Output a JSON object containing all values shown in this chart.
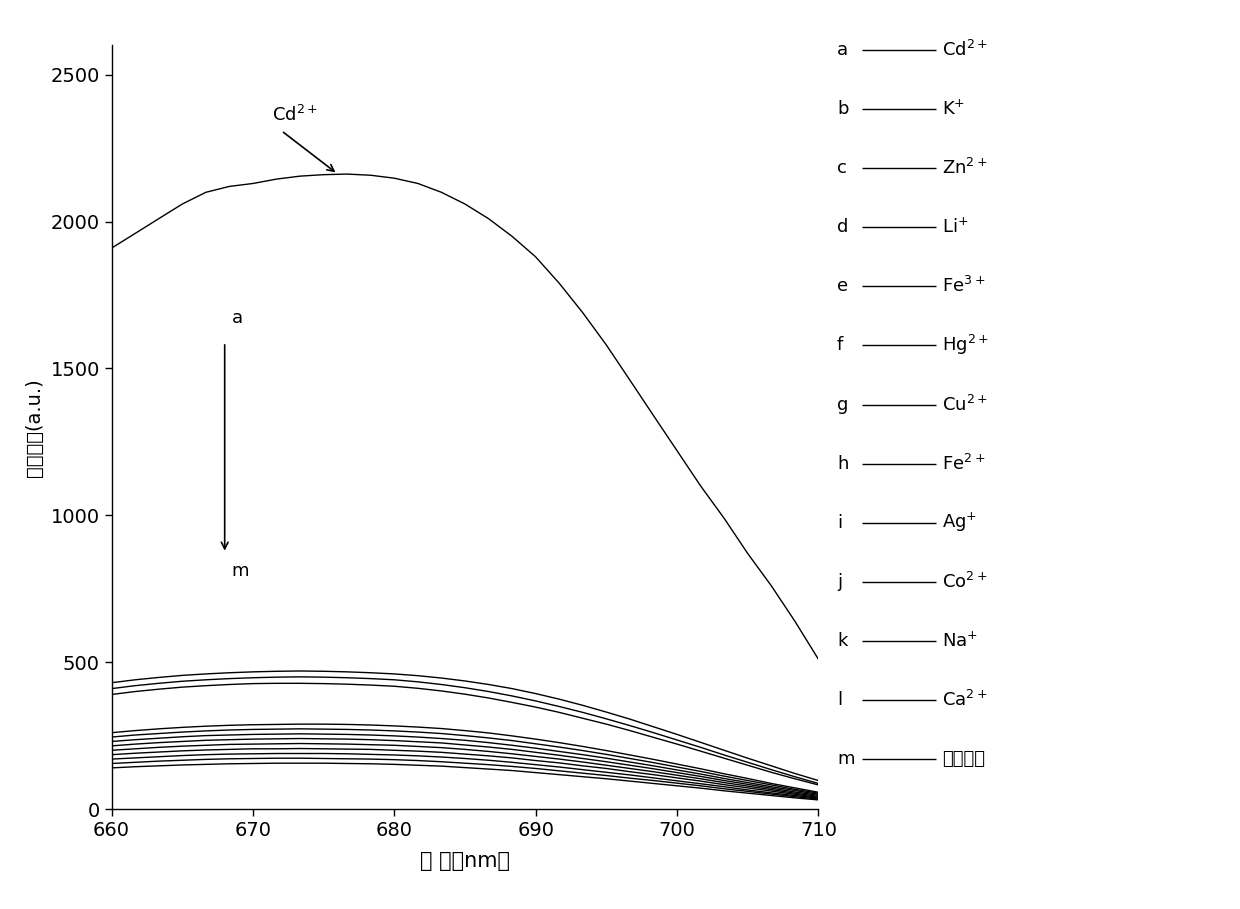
{
  "x_start": 660,
  "x_end": 710,
  "ylim": [
    0,
    2600
  ],
  "yticks": [
    0,
    500,
    1000,
    1500,
    2000,
    2500
  ],
  "xticks": [
    660,
    670,
    680,
    690,
    700,
    710
  ],
  "xlabel": "波 长（nm）",
  "ylabel": "荧光强度(a.u.)",
  "background_color": "#ffffff",
  "legend_entries": [
    {
      "label": "a",
      "ion": "Cd",
      "sup": "2+"
    },
    {
      "label": "b",
      "ion": "K",
      "sup": "+"
    },
    {
      "label": "c",
      "ion": "Zn",
      "sup": "2+"
    },
    {
      "label": "d",
      "ion": "Li",
      "sup": "+"
    },
    {
      "label": "e",
      "ion": "Fe",
      "sup": "3+"
    },
    {
      "label": "f",
      "ion": "Hg",
      "sup": "2+"
    },
    {
      "label": "g",
      "ion": "Cu",
      "sup": "2+"
    },
    {
      "label": "h",
      "ion": "Fe",
      "sup": "2+"
    },
    {
      "label": "i",
      "ion": "Ag",
      "sup": "+"
    },
    {
      "label": "j",
      "ion": "Co",
      "sup": "2+"
    },
    {
      "label": "k",
      "ion": "Na",
      "sup": "+"
    },
    {
      "label": "l",
      "ion": "Ca",
      "sup": "2+"
    },
    {
      "label": "m",
      "ion": "不加离子",
      "sup": ""
    }
  ],
  "series_x": [
    660,
    661.67,
    663.33,
    665,
    666.67,
    668.33,
    670,
    671.67,
    673.33,
    675,
    676.67,
    678.33,
    680,
    681.67,
    683.33,
    685,
    686.67,
    688.33,
    690,
    691.67,
    693.33,
    695,
    696.67,
    698.33,
    700,
    701.67,
    703.33,
    705,
    706.67,
    708.33,
    710
  ],
  "a_Cd": [
    1910,
    1960,
    2010,
    2060,
    2100,
    2120,
    2130,
    2145,
    2155,
    2160,
    2162,
    2158,
    2148,
    2130,
    2100,
    2060,
    2010,
    1950,
    1880,
    1790,
    1690,
    1580,
    1460,
    1340,
    1220,
    1100,
    990,
    870,
    760,
    640,
    510
  ],
  "b_K": [
    430,
    440,
    448,
    455,
    460,
    464,
    467,
    469,
    470,
    469,
    467,
    464,
    460,
    454,
    446,
    436,
    424,
    410,
    393,
    374,
    353,
    330,
    306,
    280,
    254,
    227,
    200,
    173,
    147,
    121,
    97
  ],
  "c_Zn": [
    410,
    420,
    428,
    435,
    440,
    444,
    447,
    449,
    450,
    449,
    447,
    444,
    440,
    433,
    424,
    413,
    400,
    385,
    368,
    349,
    329,
    307,
    284,
    260,
    235,
    210,
    184,
    159,
    134,
    110,
    87
  ],
  "d_Li": [
    390,
    400,
    408,
    415,
    420,
    424,
    427,
    428,
    428,
    427,
    425,
    422,
    418,
    411,
    402,
    391,
    378,
    363,
    347,
    329,
    309,
    289,
    267,
    244,
    221,
    197,
    173,
    149,
    125,
    103,
    82
  ],
  "e_Fe3": [
    260,
    267,
    273,
    278,
    282,
    285,
    287,
    288,
    289,
    289,
    288,
    286,
    283,
    279,
    274,
    267,
    259,
    249,
    238,
    226,
    213,
    199,
    184,
    169,
    153,
    137,
    120,
    104,
    87,
    72,
    57
  ],
  "f_Hg": [
    245,
    252,
    257,
    262,
    266,
    269,
    271,
    272,
    273,
    272,
    271,
    269,
    266,
    262,
    257,
    250,
    242,
    233,
    222,
    211,
    199,
    186,
    172,
    158,
    143,
    128,
    112,
    97,
    82,
    67,
    54
  ],
  "g_Cu": [
    230,
    236,
    241,
    246,
    250,
    252,
    254,
    255,
    256,
    255,
    254,
    252,
    249,
    245,
    240,
    234,
    226,
    217,
    207,
    196,
    185,
    173,
    160,
    147,
    133,
    119,
    104,
    90,
    76,
    63,
    50
  ],
  "h_Fe2": [
    215,
    221,
    226,
    230,
    234,
    236,
    238,
    239,
    240,
    239,
    238,
    236,
    233,
    229,
    225,
    218,
    211,
    203,
    193,
    183,
    172,
    161,
    149,
    137,
    124,
    111,
    97,
    84,
    71,
    58,
    47
  ],
  "i_Ag": [
    200,
    205,
    210,
    214,
    217,
    220,
    221,
    222,
    223,
    222,
    221,
    219,
    217,
    213,
    209,
    203,
    196,
    188,
    179,
    170,
    160,
    149,
    138,
    127,
    115,
    103,
    90,
    78,
    66,
    54,
    43
  ],
  "j_Co": [
    185,
    190,
    194,
    198,
    201,
    203,
    205,
    205,
    206,
    205,
    204,
    203,
    200,
    197,
    193,
    187,
    181,
    174,
    165,
    157,
    147,
    138,
    127,
    117,
    106,
    95,
    83,
    72,
    61,
    50,
    40
  ],
  "k_Na": [
    170,
    174,
    178,
    182,
    185,
    187,
    188,
    189,
    189,
    189,
    188,
    186,
    184,
    181,
    177,
    172,
    166,
    159,
    151,
    143,
    134,
    125,
    116,
    106,
    96,
    86,
    76,
    65,
    55,
    46,
    37
  ],
  "l_Ca": [
    155,
    159,
    163,
    166,
    169,
    171,
    172,
    173,
    173,
    172,
    171,
    170,
    168,
    165,
    161,
    156,
    151,
    145,
    138,
    130,
    122,
    114,
    105,
    97,
    88,
    79,
    69,
    60,
    51,
    42,
    34
  ],
  "m_none": [
    140,
    144,
    147,
    150,
    152,
    154,
    155,
    156,
    156,
    156,
    155,
    154,
    152,
    149,
    146,
    141,
    136,
    131,
    124,
    117,
    110,
    103,
    95,
    87,
    79,
    71,
    62,
    54,
    46,
    38,
    31
  ]
}
